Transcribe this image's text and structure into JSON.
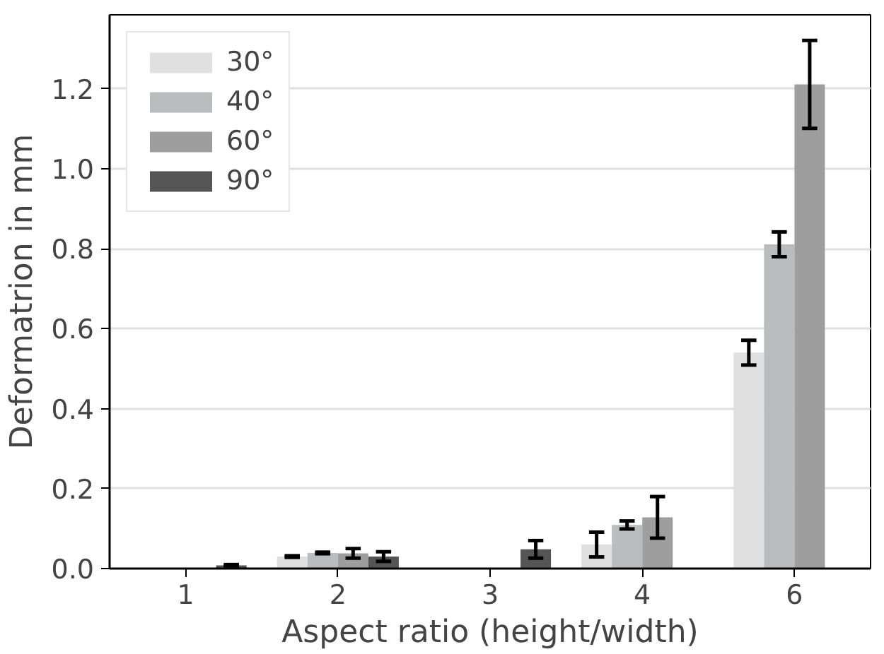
{
  "chart_data": {
    "type": "bar",
    "xlabel": "Aspect ratio (height/width)",
    "ylabel": "Deformatrion in mm",
    "categories": [
      "1",
      "2",
      "3",
      "4",
      "6"
    ],
    "series": [
      {
        "name": "30°",
        "color": "#e0e0e0",
        "values": [
          0,
          0.03,
          0,
          0.06,
          0.54
        ],
        "errors": [
          null,
          0.002,
          null,
          0.031,
          0.031
        ]
      },
      {
        "name": "40°",
        "color": "#bbbcbd",
        "values": [
          0,
          0.039,
          0,
          0.109,
          0.811
        ],
        "errors": [
          null,
          0.002,
          null,
          0.01,
          0.031
        ]
      },
      {
        "name": "60°",
        "color": "#9e9e9e",
        "values": [
          0,
          0.038,
          0,
          0.128,
          1.211
        ],
        "errors": [
          null,
          0.012,
          null,
          0.052,
          0.11
        ]
      },
      {
        "name": "90°",
        "color": "#555555",
        "values": [
          0.008,
          0.03,
          0.048,
          null,
          null
        ],
        "errors": [
          0.002,
          0.012,
          0.022,
          null,
          null
        ]
      }
    ],
    "ylim": [
      0,
      1.385
    ],
    "yticks": [
      {
        "value": 0,
        "label": "0.0"
      },
      {
        "value": 0.2,
        "label": "0.2"
      },
      {
        "value": 0.4,
        "label": "0.4"
      },
      {
        "value": 0.6,
        "label": "0.6"
      },
      {
        "value": 0.8,
        "label": "0.8"
      },
      {
        "value": 1.0,
        "label": "1.0"
      },
      {
        "value": 1.2,
        "label": "1.2"
      }
    ],
    "grid": "y",
    "legend": "top left"
  }
}
